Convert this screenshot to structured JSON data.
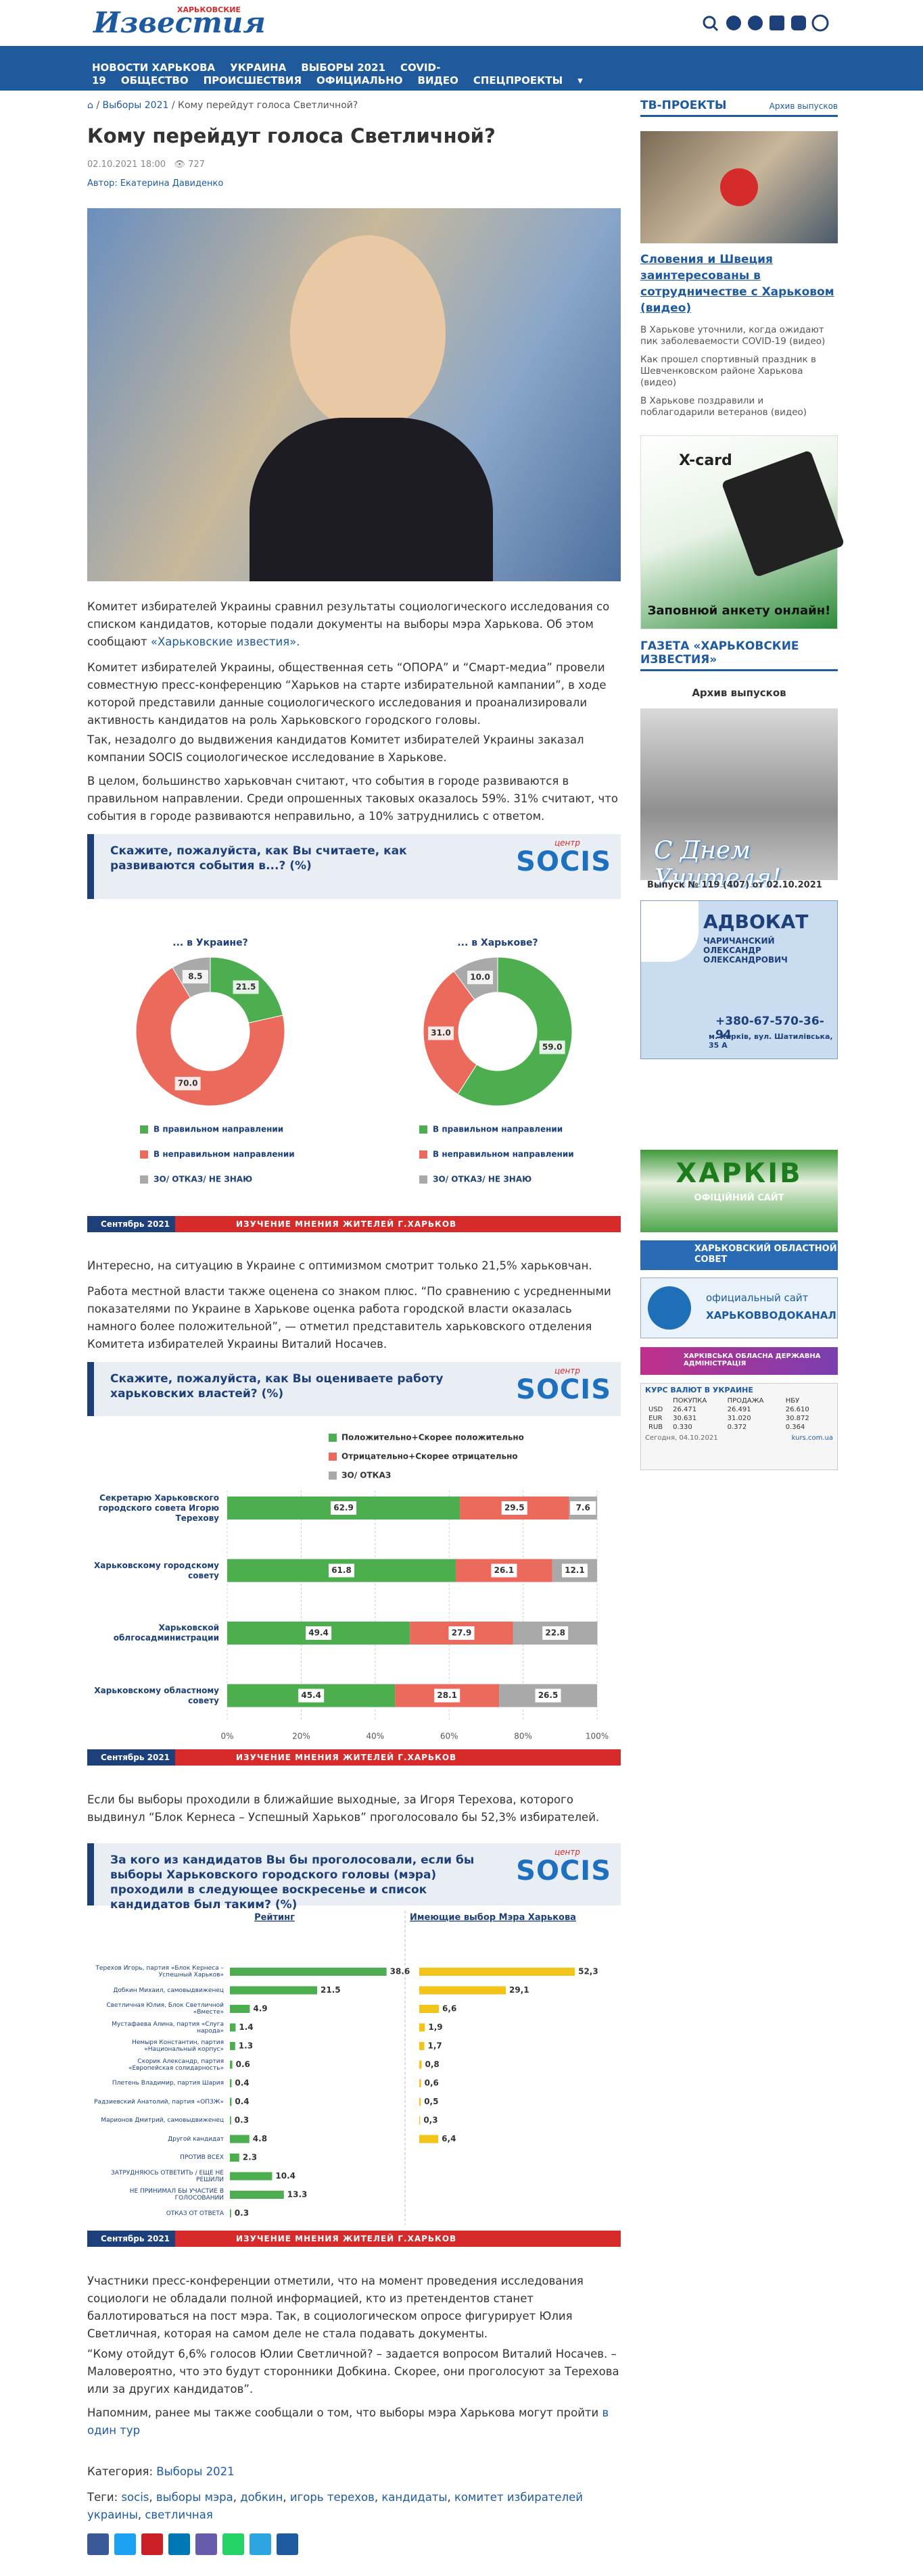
{
  "header": {
    "logo_top": "ХАРЬКОВСКИЕ",
    "logo": "Известия"
  },
  "nav": [
    "НОВОСТИ ХАРЬКОВА",
    "УКРАИНА",
    "ВЫБОРЫ 2021",
    "COVID-19",
    "ОБЩЕСТВО",
    "ПРОИСШЕСТВИЯ",
    "ОФИЦИАЛЬНО",
    "ВИДЕО",
    "СПЕЦПРОЕКТЫ"
  ],
  "breadcrumb": [
    "Выборы 2021",
    "Кому перейдут голоса Светличной?"
  ],
  "article": {
    "title": "Кому перейдут голоса Светличной?",
    "date": "02.10.2021 18:00",
    "views": "727",
    "author": "Автор: Екатерина Давиденко",
    "paragraphs": [
      {
        "text": "Комитет избирателей Украины сравнил результаты социологического исследования со списком кандидатов, которые подали документы на выборы мэра Харькова. Об этом сообщают ",
        "link": "«Харьковские известия»."
      },
      {
        "text": "Комитет избирателей Украины, общественная сеть “ОПОРА” и “Смарт-медиа” провели совместную пресс-конференцию “Харьков на старте избирательной кампании”, в ходе которой представили данные социологического исследования и проанализировали активность кандидатов на роль Харьковского городского головы."
      },
      {
        "text": "Так, незадолго до выдвижения кандидатов Комитет избирателей Украины заказал компании SOCIS социологическое исследование в Харькове."
      },
      {
        "text": "В целом, большинство харьковчан считают, что события в городе развиваются в правильном направлении. Среди опрошенных таковых оказалось 59%. 31% считают, что события в городе развиваются неправильно, а 10% затруднились с ответом."
      },
      {
        "text": "Интересно, на ситуацию в Украине с оптимизмом смотрит только 21,5% харьковчан."
      },
      {
        "text": "Работа местной власти также оценена со знаком плюс. “По сравнению с усредненными показателями по Украине в Харькове оценка работа городской власти оказалась намного более положительной”, — отметил представитель харьковского отделения Комитета избирателей Украины Виталий Носачев."
      },
      {
        "text": "Если бы выборы проходили в ближайшие выходные, за Игоря Терехова, которого выдвинул “Блок Кернеса – Успешный Харьков” проголосовало бы 52,3% избирателей."
      },
      {
        "text": "Участники пресс-конференции отметили, что на момент проведения исследования социологи не обладали полной информацией, кто из претендентов станет баллотироваться на пост мэра. Так, в социологическом опросе фигурирует Юлия Светличная, которая на самом деле не стала подавать документы."
      },
      {
        "text": "“Кому отойдут 6,6% голосов Юлии Светличной? – задается вопросом Виталий Носачев. – Маловероятно, что это будут сторонники Добкина. Скорее, они проголосуют за Терехова или за других кандидатов”."
      },
      {
        "text": "Напомним, ранее мы также сообщали о том, что выборы мэра Харькова могут пройти ",
        "link": "в один тур"
      }
    ],
    "category_label": "Категория:",
    "category": "Выборы 2021",
    "tags_label": "Теги:",
    "tags": [
      "socis",
      "выборы мэра",
      "добкин",
      "игорь терехов",
      "кандидаты",
      "комитет избирателей украины",
      "светличная"
    ]
  },
  "chart_data": [
    {
      "type": "donut",
      "title": "Скажите, пожалуйста, как Вы считаете, как развиваются события в...? (%)",
      "brand_top": "центр",
      "brand": "SOCIS",
      "categories": [
        "В правильном направлении",
        "В неправильном направлении",
        "ЗО/ ОТКАЗ/ НЕ ЗНАЮ"
      ],
      "colors": [
        "#4cae4f",
        "#ec6a5c",
        "#a9a9a9"
      ],
      "series": [
        {
          "name": "... в Украине?",
          "values": [
            21.5,
            70,
            8.5
          ],
          "value_labels": [
            "21.5",
            "70.0",
            "8.5"
          ]
        },
        {
          "name": "... в Харькове?",
          "values": [
            59,
            31,
            10
          ],
          "value_labels": [
            "59.0",
            "31.0",
            "10.0"
          ]
        }
      ],
      "footer": [
        "Сентябрь 2021",
        "ИЗУЧЕНИЕ МНЕНИЯ ЖИТЕЛЕЙ Г.ХАРЬКОВ"
      ]
    },
    {
      "type": "stacked_bar",
      "title": "Скажите, пожалуйста, как Вы оцениваете работу харьковских властей? (%)",
      "brand_top": "центр",
      "brand": "SOCIS",
      "categories": [
        "Секретарю Харьковского городского совета Игорю Терехову",
        "Харьковскому городскому совету",
        "Харьковской облгосадминистрации",
        "Харьковскому областному совету"
      ],
      "series": [
        {
          "name": "Положительно+Скорее положительно",
          "color": "#4cae4f",
          "values": [
            62.9,
            61.8,
            49.4,
            45.4
          ]
        },
        {
          "name": "Отрицательно+Скорее отрицательно",
          "color": "#ec6a5c",
          "values": [
            29.5,
            26.1,
            27.9,
            28.1
          ]
        },
        {
          "name": "ЗО/ ОТКАЗ",
          "color": "#a9a9a9",
          "values": [
            7.6,
            12.1,
            22.8,
            26.5
          ]
        }
      ],
      "xlim": [
        0,
        100
      ],
      "xticks": [
        {
          "value": 0,
          "label": "0%"
        },
        {
          "value": 20,
          "label": "20%"
        },
        {
          "value": 40,
          "label": "40%"
        },
        {
          "value": 60,
          "label": "60%"
        },
        {
          "value": 80,
          "label": "80%"
        },
        {
          "value": 100,
          "label": "100%"
        }
      ],
      "grid": true,
      "footer": [
        "Сентябрь 2021",
        "ИЗУЧЕНИЕ МНЕНИЯ ЖИТЕЛЕЙ Г.ХАРЬКОВ"
      ]
    },
    {
      "type": "bar_panels",
      "title": "За кого из кандидатов Вы бы проголосовали, если бы выборы Харьковского городского головы (мэра) проходили в следующее воскресенье и список кандидатов был таким? (%)",
      "brand_top": "центр",
      "brand": "SOCIS",
      "categories": [
        "Терехов Игорь, партия «Блок Кернеса – Успешный Харьков»",
        "Добкин Михаил, самовыдвиженец",
        "Светличная Юлия, Блок Светличной «Вместе»",
        "Мустафаева Алина, партия «Слуга народа»",
        "Немыря Константин, партия «Национальный корпус»",
        "Скорик Александр, партия «Европейская солидарность»",
        "Плетень Владимир, партия Шария",
        "Радзиевский Анатолий, партия «ОПЗЖ»",
        "Марионов Дмитрий, самовыдвиженец",
        "Другой кандидат",
        "ПРОТИВ ВСЕХ",
        "ЗАТРУДНЯЮСЬ ОТВЕТИТЬ / ЕЩЕ НЕ РЕШИЛИ",
        "НЕ ПРИНИМАЛ БЫ УЧАСТИЕ В ГОЛОСОВАНИИ",
        "ОТКАЗ ОТ ОТВЕТА"
      ],
      "series": [
        {
          "name": "Рейтинг",
          "color": "#4cae4f",
          "values": [
            38.6,
            21.5,
            4.9,
            1.4,
            1.3,
            0.6,
            0.4,
            0.4,
            0.3,
            4.8,
            2.3,
            10.4,
            13.3,
            0.3
          ]
        },
        {
          "name": "Имеющие выбор Мэра Харькова",
          "color": "#f2c318",
          "values": [
            52.3,
            29.1,
            6.6,
            1.9,
            1.7,
            0.8,
            0.6,
            0.5,
            0.3,
            6.4,
            null,
            null,
            null,
            null
          ],
          "value_labels": [
            "52,3",
            "29,1",
            "6,6",
            "1,9",
            "1,7",
            "0,8",
            "0,6",
            "0,5",
            "0,3",
            "6,4",
            null,
            null,
            null,
            null
          ]
        }
      ],
      "footer": [
        "Сентябрь 2021",
        "ИЗУЧЕНИЕ МНЕНИЯ ЖИТЕЛЕЙ Г.ХАРЬКОВ"
      ]
    }
  ],
  "sidebar": {
    "tv": {
      "header": "ТВ-ПРОЕКТЫ",
      "archive": "Архив выпусков",
      "headline": "Словения и Швеция заинтересованы в сотрудничестве с Харьковом (видео)",
      "items": [
        "В Харькове уточнили, когда ожидают пик заболеваемости COVID-19 (видео)",
        "Как прошел спортивный праздник в Шевченковском районе Харькова (видео)",
        "В Харькове поздравили и поблагодарили ветеранов (видео)"
      ]
    },
    "xcard": {
      "title": "X-card",
      "cta": "Заповнюй анкету онлайн!"
    },
    "newspaper": {
      "header": "ГАЗЕТА «ХАРЬКОВСКИЕ ИЗВЕСТИЯ»",
      "archive": "Архив выпусков",
      "cover": "С Днем Учителя!",
      "issue": "Выпуск № 119 (407) от 02.10.2021"
    },
    "ad": {
      "title": "АДВОКАТ",
      "name": "ЧАРИЧАНСКИЙ ОЛЕКСАНДР ОЛЕКСАНДРОВИЧ",
      "phone": "+380-67-570-36-94",
      "address": "м. Харків, вул. Шатилівська, 35 А"
    },
    "banners": {
      "kharkiv": "ХАРКІВ",
      "kharkiv_sub": "ОФІЦІЙНИЙ САЙТ",
      "oblsovet": "ХАРЬКОВСКИЙ ОБЛАСТНОЙ СОВЕТ",
      "vodokanal_top": "официальный сайт",
      "vodokanal": "ХАРЬКОВВОДОКАНАЛ",
      "oda": "ХАРКІВСЬКА ОБЛАСНА ДЕРЖАВНА АДМІНІСТРАЦІЯ"
    },
    "currency": {
      "title": "КУРС ВАЛЮТ В УКРАИНЕ",
      "headers": [
        "ПОКУПКА",
        "ПРОДАЖА",
        "НБУ"
      ],
      "rows": [
        [
          "USD",
          "26.471",
          "26.491",
          "26.610"
        ],
        [
          "EUR",
          "30.631",
          "31.020",
          "30.872"
        ],
        [
          "RUB",
          "0.330",
          "0.372",
          "0.364"
        ]
      ],
      "date": "Сегодня, 04.10.2021",
      "source": "kurs.com.ua"
    }
  }
}
